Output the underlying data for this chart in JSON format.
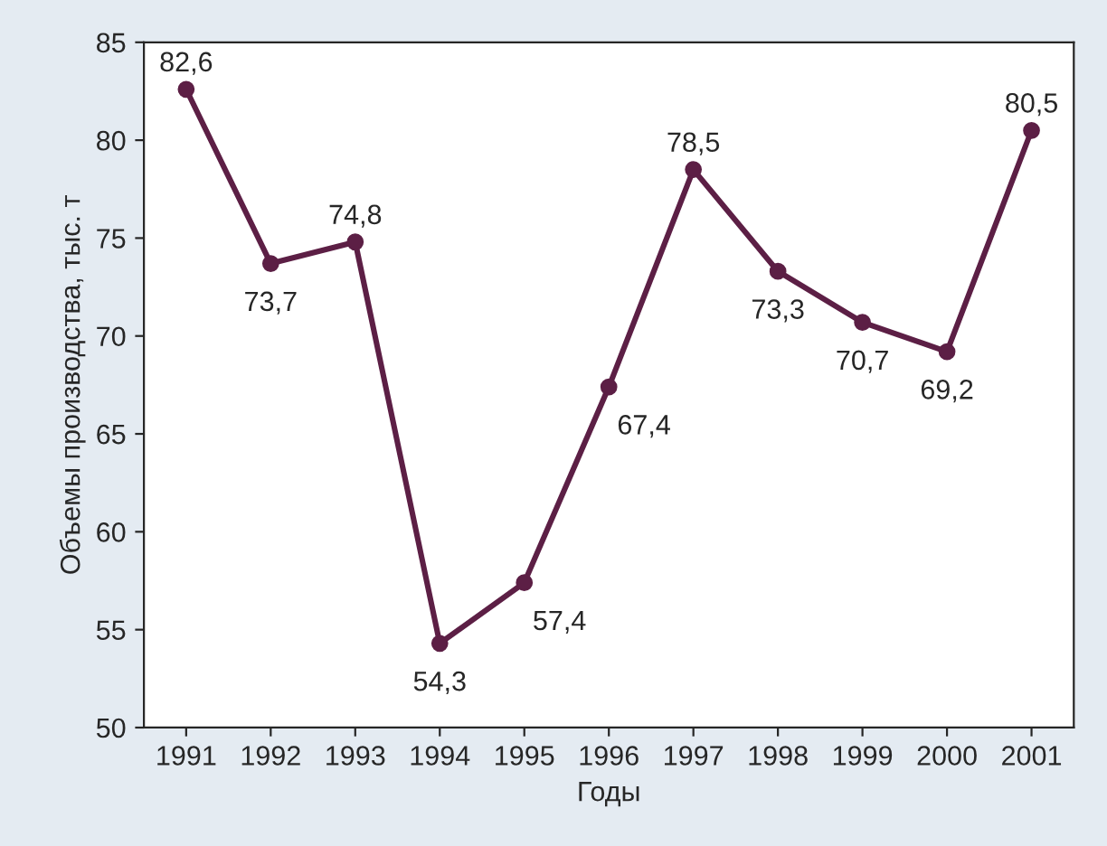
{
  "chart_data": {
    "type": "line",
    "xlabel": "Годы",
    "ylabel": "Объемы производства, тыс. т",
    "categories": [
      "1991",
      "1992",
      "1993",
      "1994",
      "1995",
      "1996",
      "1997",
      "1998",
      "1999",
      "2000",
      "2001"
    ],
    "series": [
      {
        "color": "#5c1f45",
        "values": [
          82.6,
          73.7,
          74.8,
          54.3,
          57.4,
          67.4,
          78.5,
          73.3,
          70.7,
          69.2,
          80.5
        ],
        "value_labels": [
          "82,6",
          "73,7",
          "74,8",
          "54,3",
          "57,4",
          "67,4",
          "78,5",
          "73,3",
          "70,7",
          "69,2",
          "80,5"
        ]
      }
    ],
    "ylim": [
      50,
      85
    ],
    "yticks": [
      50,
      55,
      60,
      65,
      70,
      75,
      80,
      85
    ],
    "marker": "circle",
    "line_style": "solid",
    "grid": false,
    "legend": false
  }
}
